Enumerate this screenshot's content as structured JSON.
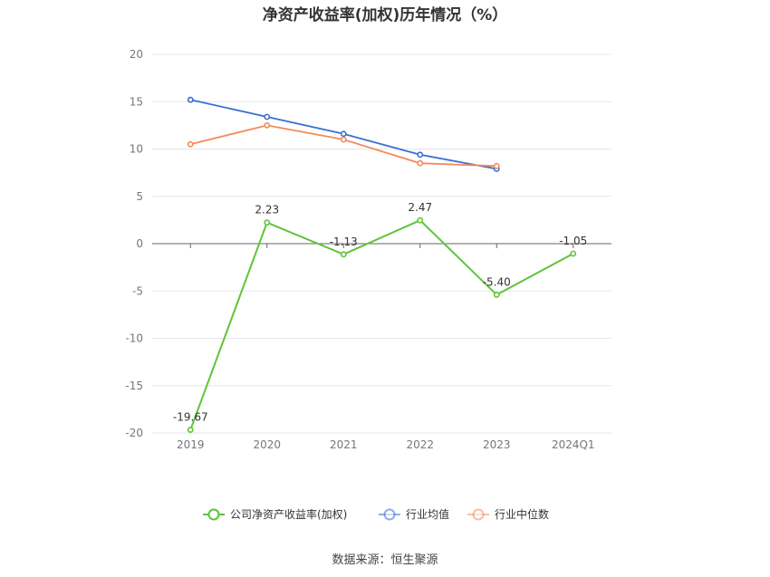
{
  "chart_data": {
    "type": "line",
    "title": "净资产收益率(加权)历年情况（%）",
    "categories": [
      "2019",
      "2020",
      "2021",
      "2022",
      "2023",
      "2024Q1"
    ],
    "ylim": [
      -20,
      20
    ],
    "yticks": [
      20,
      15,
      10,
      5,
      0,
      -5,
      -10,
      -15,
      -20
    ],
    "grid": true,
    "legend_position": "bottom",
    "series": [
      {
        "name": "公司净资产收益率(加权)",
        "color": "#5fc43a",
        "values": [
          -19.67,
          2.23,
          -1.13,
          2.47,
          -5.4,
          -1.05
        ],
        "labels": [
          "-19.67",
          "2.23",
          "-1.13",
          "2.47",
          "-5.40",
          "-1.05"
        ]
      },
      {
        "name": "行业均值",
        "color": "#3a6fd0",
        "values": [
          15.2,
          13.4,
          11.6,
          9.4,
          7.9,
          null
        ]
      },
      {
        "name": "行业中位数",
        "color": "#f28a5b",
        "values": [
          10.5,
          12.5,
          11.0,
          8.5,
          8.2,
          null
        ]
      }
    ]
  },
  "source": "数据来源：恒生聚源"
}
